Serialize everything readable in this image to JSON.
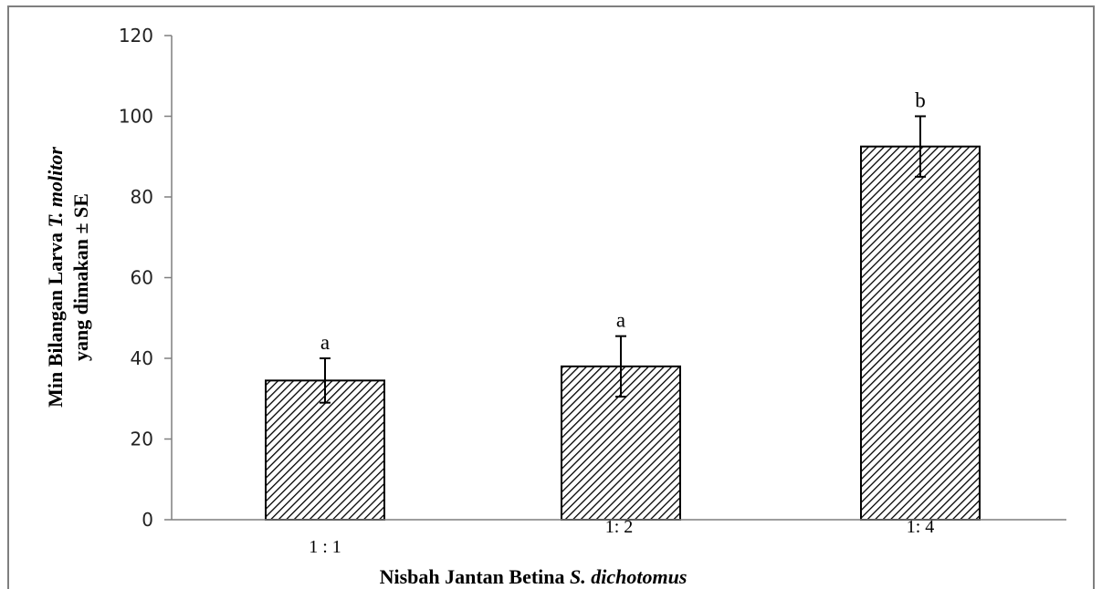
{
  "chart_data": {
    "type": "bar",
    "categories": [
      "1 : 1",
      "1: 2",
      "1: 4"
    ],
    "values": [
      34.5,
      38,
      92.5
    ],
    "error_bars": [
      5.5,
      7.5,
      7.5
    ],
    "significance_letters": [
      "a",
      "a",
      "b"
    ],
    "xlabel": {
      "prefix": "Nisbah Jantan Betina ",
      "italic": "S. dichotomus"
    },
    "ylabel": {
      "line1_prefix": "Min Bilangan Larva ",
      "line1_italic": "T. molitor",
      "line2": "yang dimakan ± SE"
    },
    "ylim": [
      0,
      120
    ],
    "yticks": [
      0,
      20,
      40,
      60,
      80,
      100,
      120
    ],
    "grid": false,
    "legend": "none",
    "bar_fill": "hatched",
    "colors": {
      "bar_edge": "#000000",
      "hatch": "#000000",
      "axis": "#7f7f7f",
      "frame": "#7f7f7f"
    }
  }
}
